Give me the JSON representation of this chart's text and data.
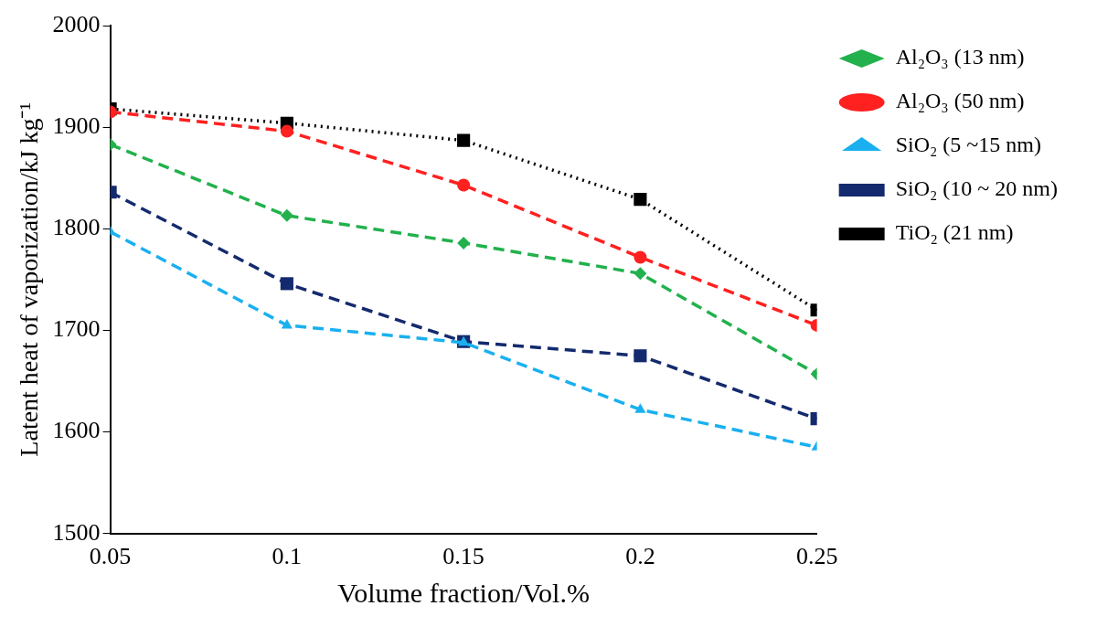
{
  "chart_data": {
    "type": "line",
    "xlabel": "Volume fraction/Vol.%",
    "ylabel": "Latent heat of vaporization/kJ kg⁻¹",
    "x": [
      0.05,
      0.1,
      0.15,
      0.2,
      0.25
    ],
    "xlim": [
      0.05,
      0.25
    ],
    "xticks": [
      0.05,
      0.1,
      0.15,
      0.2,
      0.25
    ],
    "ylim": [
      1500,
      2000
    ],
    "yticks": [
      1500,
      1600,
      1700,
      1800,
      1900,
      2000
    ],
    "grid": false,
    "legend": "right",
    "series": [
      {
        "name": "Al₂O₃ (13 nm)",
        "color": "#22b14c",
        "marker": "diamond",
        "line_style": "dashed",
        "values": [
          1883,
          1813,
          1786,
          1756,
          1657
        ]
      },
      {
        "name": "Al₂O₃ (50 nm)",
        "color": "#ff2020",
        "marker": "circle",
        "line_style": "dashed",
        "values": [
          1915,
          1896,
          1843,
          1772,
          1705
        ]
      },
      {
        "name": "SiO₂ (5 ~15 nm)",
        "color": "#1ab0ef",
        "marker": "triangle",
        "line_style": "dashed",
        "values": [
          1797,
          1705,
          1688,
          1622,
          1585
        ]
      },
      {
        "name": "SiO₂ (10 ~ 20 nm)",
        "color": "#142a6e",
        "marker": "square",
        "line_style": "dashed",
        "values": [
          1836,
          1746,
          1689,
          1675,
          1613
        ]
      },
      {
        "name": "TiO₂ (21 nm)",
        "color": "#000000",
        "marker": "square",
        "line_style": "dotted",
        "values": [
          1918,
          1904,
          1887,
          1829,
          1720
        ]
      }
    ]
  }
}
